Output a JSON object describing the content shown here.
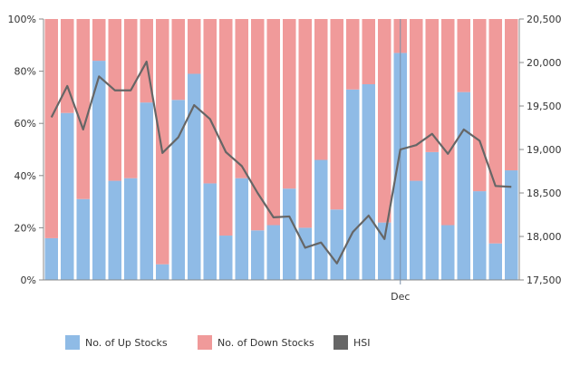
{
  "chart_data": {
    "type": "bar",
    "stacked": true,
    "x_label_ticks": [
      {
        "index": 23,
        "label": "Dec"
      }
    ],
    "series": [
      {
        "name": "No. of Up Stocks",
        "color": "#8fbbe6",
        "axis": "left",
        "values": [
          16,
          64,
          31,
          84,
          38,
          39,
          68,
          6,
          69,
          79,
          37,
          17,
          39,
          19,
          21,
          35,
          20,
          46,
          27,
          73,
          75,
          22,
          87,
          38,
          49,
          21,
          72,
          34,
          14,
          42
        ]
      },
      {
        "name": "No. of Down Stocks",
        "color": "#f09a9a",
        "axis": "left",
        "values": [
          84,
          36,
          69,
          16,
          62,
          61,
          32,
          94,
          31,
          21,
          63,
          83,
          61,
          81,
          79,
          65,
          80,
          54,
          73,
          27,
          25,
          78,
          13,
          62,
          51,
          79,
          28,
          66,
          86,
          58
        ]
      },
      {
        "name": "HSI",
        "color": "#666666",
        "axis": "right",
        "type": "line",
        "values": [
          19370,
          19730,
          19230,
          19840,
          19680,
          19680,
          20010,
          18960,
          19140,
          19510,
          19350,
          18970,
          18810,
          18500,
          18220,
          18230,
          17870,
          17930,
          17690,
          18050,
          18240,
          17970,
          19000,
          19050,
          19180,
          18950,
          19230,
          19100,
          18580,
          18570
        ]
      }
    ],
    "y_left": {
      "min": 0,
      "max": 100,
      "ticks": [
        "0%",
        "20%",
        "40%",
        "60%",
        "80%",
        "100%"
      ]
    },
    "y_right": {
      "min": 17500,
      "max": 20500,
      "ticks": [
        "17,500",
        "18,000",
        "18,500",
        "19,000",
        "19,500",
        "20,000",
        "20,500"
      ]
    },
    "legend_position": "bottom",
    "grid": false
  }
}
